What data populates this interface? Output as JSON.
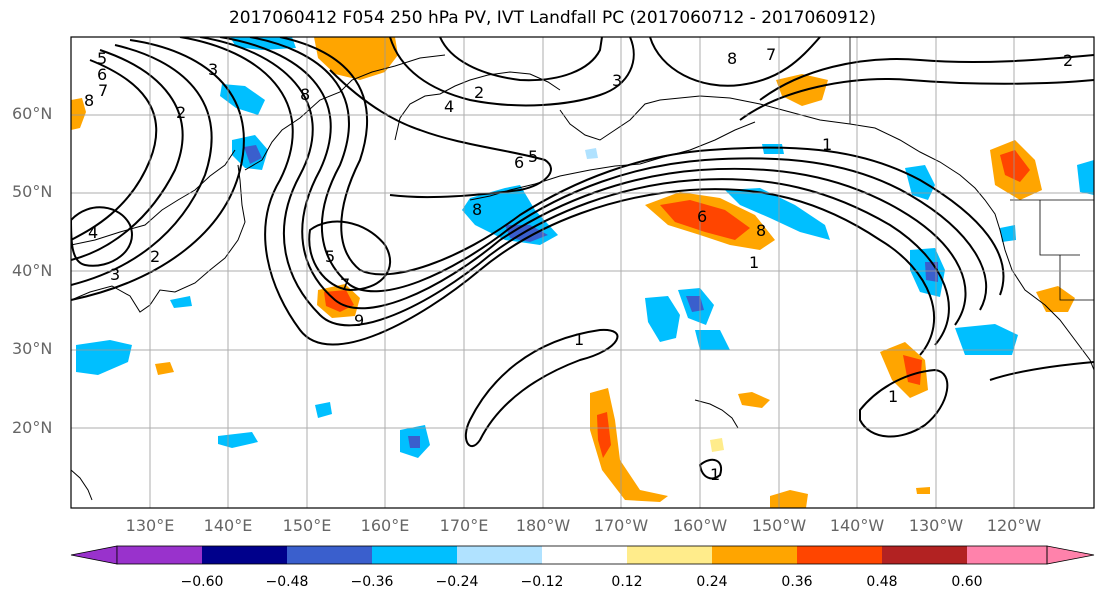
{
  "title": "2017060412 F054 250 hPa PV, IVT Landfall PC (2017060712 - 2017060912)",
  "lat_labels": [
    "60°N",
    "50°N",
    "40°N",
    "30°N",
    "20°N"
  ],
  "lon_labels": [
    "130°E",
    "140°E",
    "150°E",
    "160°E",
    "170°E",
    "180°W",
    "170°W",
    "160°W",
    "150°W",
    "140°W",
    "130°W",
    "120°W"
  ],
  "colorbar": {
    "ticks": [
      "−0.60",
      "−0.48",
      "−0.36",
      "−0.24",
      "−0.12",
      "0.12",
      "0.24",
      "0.36",
      "0.48",
      "0.60"
    ],
    "colors": [
      "#9932CC",
      "#00008B",
      "#3A5FCD",
      "#00BFFF",
      "#B0E2FF",
      "#FFFFFF",
      "#FFEC8B",
      "#FFA500",
      "#FF4500",
      "#B22222",
      "#FF82AB"
    ]
  },
  "contour_labels": [
    "5",
    "6",
    "7",
    "8",
    "3",
    "2",
    "4",
    "3",
    "2",
    "8",
    "4",
    "3",
    "2",
    "5",
    "6",
    "5",
    "7",
    "8",
    "7",
    "2",
    "1",
    "9",
    "8",
    "6",
    "1",
    "1",
    "1",
    "8",
    "1"
  ],
  "colors": {
    "pv_contour": "#000000",
    "coast": "#000000",
    "grid": "#999999"
  }
}
